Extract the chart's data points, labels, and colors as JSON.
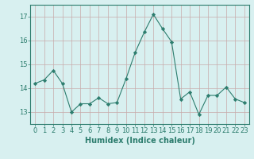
{
  "x": [
    0,
    1,
    2,
    3,
    4,
    5,
    6,
    7,
    8,
    9,
    10,
    11,
    12,
    13,
    14,
    15,
    16,
    17,
    18,
    19,
    20,
    21,
    22,
    23
  ],
  "y": [
    14.2,
    14.35,
    14.75,
    14.2,
    13.0,
    13.35,
    13.35,
    13.6,
    13.35,
    13.4,
    14.4,
    15.5,
    16.35,
    17.1,
    16.5,
    15.95,
    13.55,
    13.85,
    12.9,
    13.7,
    13.7,
    14.05,
    13.55,
    13.4
  ],
  "line_color": "#2d7d6e",
  "marker": "D",
  "marker_size": 2.2,
  "bg_color": "#d8f0f0",
  "grid_color": "#c8aaaa",
  "axis_color": "#2d7d6e",
  "tick_color": "#2d7d6e",
  "xlabel": "Humidex (Indice chaleur)",
  "xlabel_fontsize": 7,
  "tick_fontsize": 6,
  "ylim": [
    12.5,
    17.5
  ],
  "yticks": [
    13,
    14,
    15,
    16,
    17
  ],
  "xlim": [
    -0.5,
    23.5
  ]
}
